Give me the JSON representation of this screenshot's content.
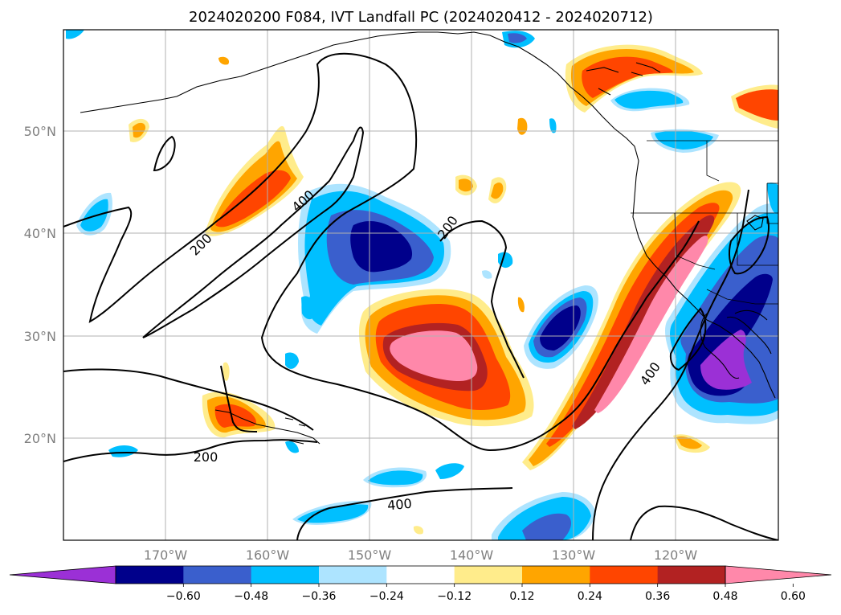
{
  "title": "2024020200 F084, IVT Landfall PC (2024020412 - 2024020712)",
  "latitude_labels": [
    "50°N",
    "40°N",
    "30°N",
    "20°N"
  ],
  "longitude_labels": [
    "170°W",
    "160°W",
    "150°W",
    "140°W",
    "130°W",
    "120°W"
  ],
  "ivt_contour_labels": [
    "200",
    "400",
    "200",
    "200",
    "400",
    "400"
  ],
  "colorbar": {
    "ticks": [
      "−0.60",
      "−0.48",
      "−0.36",
      "−0.24",
      "−0.12",
      "0.12",
      "0.24",
      "0.36",
      "0.48",
      "0.60"
    ],
    "colors": [
      "#9b30d6",
      "#00008b",
      "#3a5fcd",
      "#00bfff",
      "#ade4ff",
      "#ffffff",
      "#ffec8b",
      "#ffa500",
      "#ff4500",
      "#b22222",
      "#ff88aa"
    ]
  }
}
